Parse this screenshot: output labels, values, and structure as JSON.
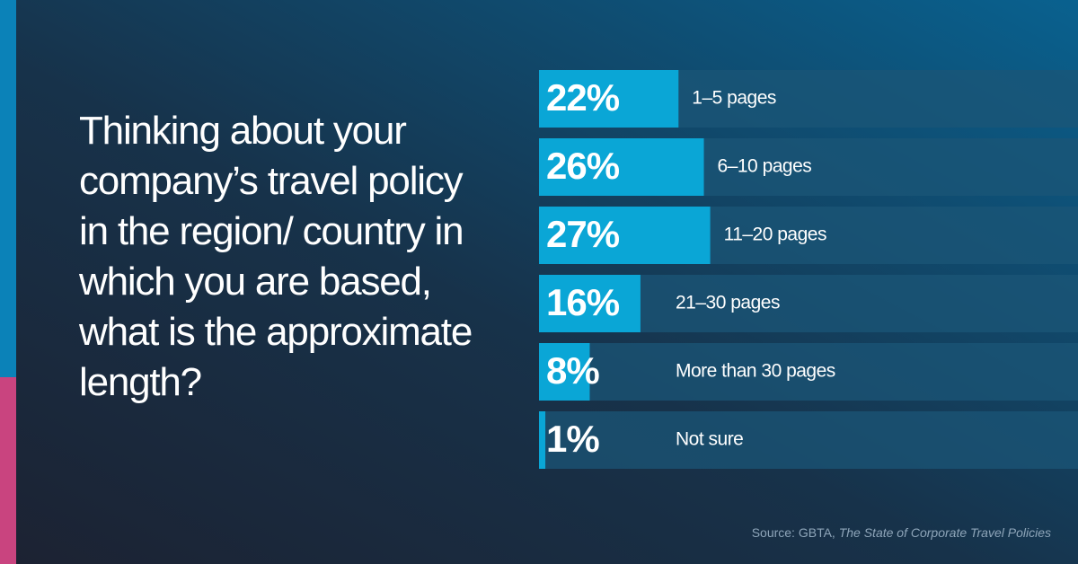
{
  "chart_data": {
    "type": "bar",
    "orientation": "horizontal",
    "title": "Thinking about your company’s travel policy in the region/ country in which you are based, what is the approximate length?",
    "categories": [
      "1–5 pages",
      "6–10 pages",
      "11–20 pages",
      "21–30 pages",
      "More than 30 pages",
      "Not sure"
    ],
    "values": [
      22,
      26,
      27,
      16,
      8,
      1
    ],
    "value_labels": [
      "22%",
      "26%",
      "27%",
      "16%",
      "8%",
      "1%"
    ],
    "color": "#0aa6d6",
    "track_color": "#1b5677",
    "xlim": [
      0,
      85
    ],
    "source": {
      "prefix": "Source: GBTA,",
      "publication": "The State of Corporate Travel Policies"
    }
  }
}
